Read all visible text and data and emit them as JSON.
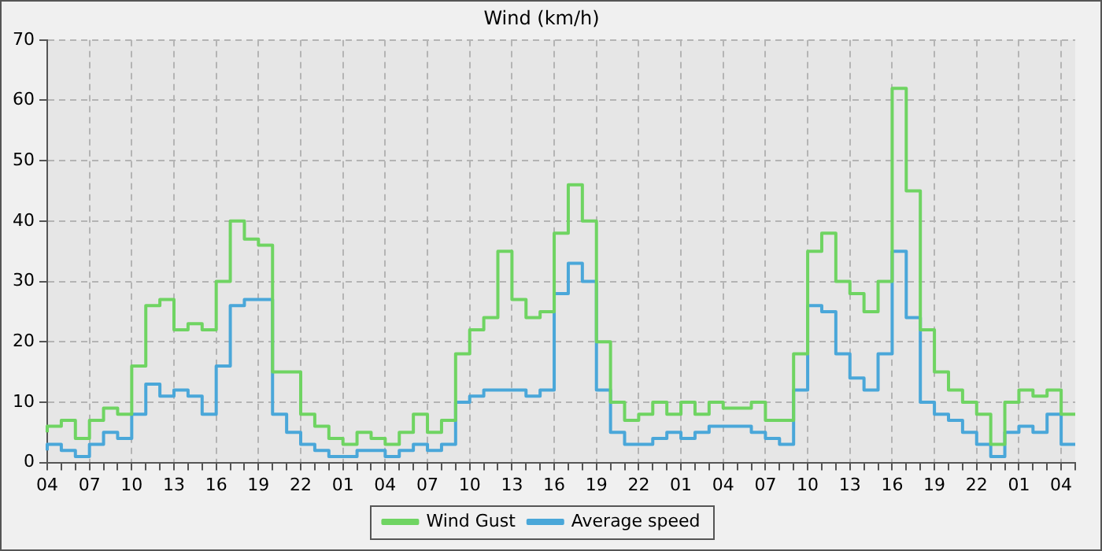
{
  "chart_data": {
    "type": "step",
    "title": "Wind (km/h)",
    "categories": [
      "04",
      null,
      null,
      "07",
      null,
      null,
      "10",
      null,
      null,
      "13",
      null,
      null,
      "16",
      null,
      null,
      "19",
      null,
      null,
      "22",
      null,
      null,
      "01",
      null,
      null,
      "04",
      null,
      null,
      "07",
      null,
      null,
      "10",
      null,
      null,
      "13",
      null,
      null,
      "16",
      null,
      null,
      "19",
      null,
      null,
      "22",
      null,
      null,
      "01",
      null,
      null,
      "04",
      null,
      null,
      "07",
      null,
      null,
      "10",
      null,
      null,
      "13",
      null,
      null,
      "16",
      null,
      null,
      "19",
      null,
      null,
      "22",
      null,
      null,
      "01",
      null,
      null,
      "04",
      null
    ],
    "series": [
      {
        "name": "Wind Gust",
        "color": "#6fd462",
        "values": [
          5,
          6,
          7,
          4,
          7,
          9,
          8,
          16,
          26,
          27,
          22,
          23,
          22,
          30,
          40,
          37,
          36,
          15,
          15,
          8,
          6,
          4,
          3,
          5,
          4,
          3,
          5,
          8,
          5,
          7,
          18,
          22,
          24,
          35,
          27,
          24,
          25,
          38,
          46,
          40,
          20,
          10,
          7,
          8,
          10,
          8,
          10,
          8,
          10,
          9,
          9,
          10,
          7,
          7,
          18,
          35,
          38,
          30,
          28,
          25,
          30,
          62,
          45,
          22,
          15,
          12,
          10,
          8,
          3,
          10,
          12,
          11,
          12,
          8
        ]
      },
      {
        "name": "Average speed",
        "color": "#4aa7d9",
        "values": [
          2,
          3,
          2,
          1,
          3,
          5,
          4,
          8,
          13,
          11,
          12,
          11,
          8,
          16,
          26,
          27,
          27,
          8,
          5,
          3,
          2,
          1,
          1,
          2,
          2,
          1,
          2,
          3,
          2,
          3,
          10,
          11,
          12,
          12,
          12,
          11,
          12,
          28,
          33,
          30,
          12,
          5,
          3,
          3,
          4,
          5,
          4,
          5,
          6,
          6,
          6,
          5,
          4,
          3,
          12,
          26,
          25,
          18,
          14,
          12,
          18,
          35,
          24,
          10,
          8,
          7,
          5,
          3,
          1,
          5,
          6,
          5,
          8,
          3
        ]
      }
    ],
    "ylim": [
      0,
      70
    ],
    "yticks": [
      0,
      10,
      20,
      30,
      40,
      50,
      60,
      70
    ],
    "grid": true,
    "legend": "bottom"
  }
}
